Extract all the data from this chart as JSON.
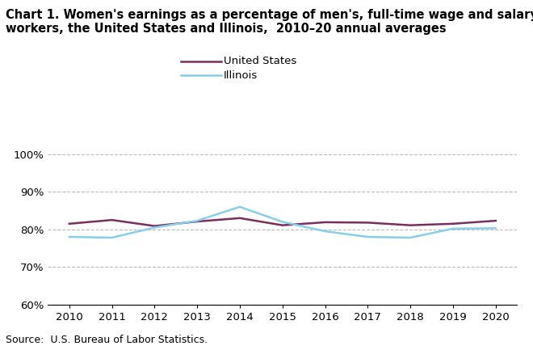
{
  "title_line1": "Chart 1. Women's earnings as a percentage of men's, full-time wage and salary",
  "title_line2": "workers, the United States and Illinois,  2010–20 annual averages",
  "years": [
    2010,
    2011,
    2012,
    2013,
    2014,
    2015,
    2016,
    2017,
    2018,
    2019,
    2020
  ],
  "us_values": [
    81.5,
    82.5,
    80.9,
    82.1,
    83.0,
    81.1,
    81.9,
    81.8,
    81.1,
    81.5,
    82.3
  ],
  "il_values": [
    78.0,
    77.8,
    80.5,
    82.3,
    86.0,
    82.0,
    79.5,
    78.0,
    77.8,
    80.2,
    80.3
  ],
  "us_color": "#7B2D5E",
  "il_color": "#87CEEB",
  "us_label": "United States",
  "il_label": "Illinois",
  "ylim": [
    60,
    101
  ],
  "yticks": [
    60,
    70,
    80,
    90,
    100
  ],
  "ytick_labels": [
    "60%",
    "70%",
    "80%",
    "90%",
    "100%"
  ],
  "xlim": [
    2009.5,
    2020.5
  ],
  "source_text": "Source:  U.S. Bureau of Labor Statistics.",
  "grid_color": "#bbbbbb",
  "line_width": 1.8,
  "title_fontsize": 10.5,
  "tick_fontsize": 9.5,
  "legend_fontsize": 9.5,
  "source_fontsize": 9.0
}
